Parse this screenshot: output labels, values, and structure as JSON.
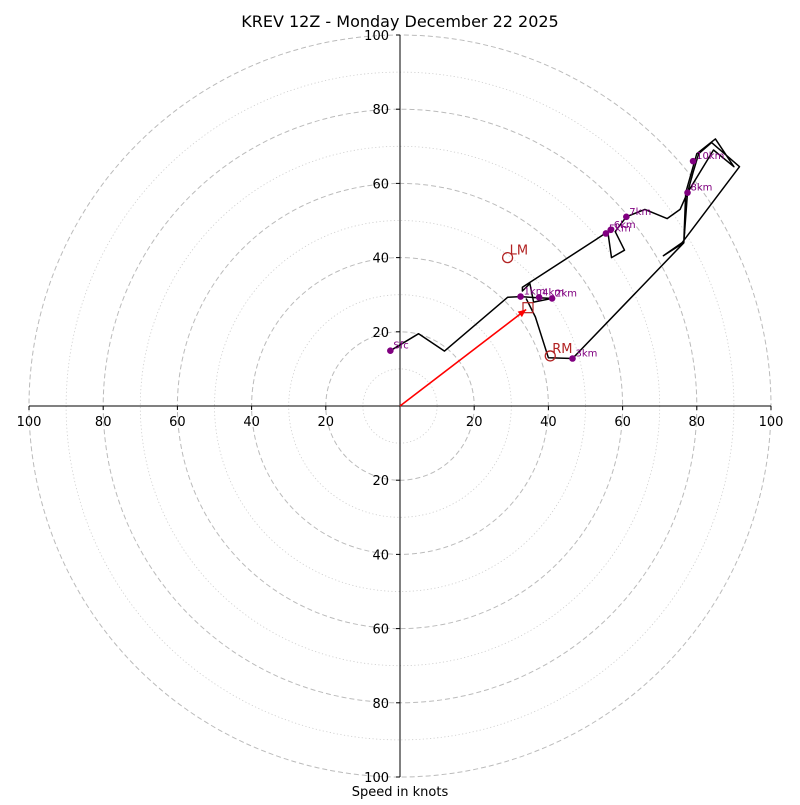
{
  "chart_data": {
    "type": "hodograph",
    "title": "KREV 12Z - Monday December 22 2025",
    "xlabel": "Speed in knots",
    "ring_max": 100,
    "ring_step_major": 20,
    "ring_step_minor": 10,
    "axis_tick_labels": [
      "100",
      "80",
      "60",
      "40",
      "20",
      "20",
      "40",
      "60",
      "80",
      "100"
    ],
    "tick_values": [
      20,
      40,
      60,
      80,
      100
    ],
    "colors": {
      "trace": "#000000",
      "height_points": "#800080",
      "motion": "#b22222",
      "mean_wind_arrow": "#ff0000",
      "rings": "#bbbbbb",
      "axes": "#000000"
    },
    "hodograph_trace": [
      [
        -2.6,
        14.9
      ],
      [
        5,
        19.5
      ],
      [
        12,
        14.8
      ],
      [
        29,
        29.3
      ],
      [
        32.5,
        29.5
      ],
      [
        37,
        29.2
      ],
      [
        41,
        29
      ],
      [
        36,
        28
      ],
      [
        35,
        33
      ],
      [
        33,
        31
      ],
      [
        33,
        32
      ],
      [
        53,
        45
      ],
      [
        56,
        47
      ],
      [
        57,
        40
      ],
      [
        60.5,
        42
      ],
      [
        58,
        47
      ],
      [
        61,
        51
      ],
      [
        66,
        53
      ],
      [
        72,
        50.5
      ],
      [
        75.5,
        53
      ],
      [
        77.5,
        57.5
      ],
      [
        79,
        63
      ],
      [
        80.5,
        68
      ],
      [
        84,
        71
      ],
      [
        91.5,
        64.5
      ],
      [
        76,
        44
      ],
      [
        71,
        40.5
      ],
      [
        76.5,
        44
      ],
      [
        77,
        57.5
      ],
      [
        80,
        68
      ],
      [
        85,
        72
      ],
      [
        90,
        64.5
      ],
      [
        84.5,
        69
      ],
      [
        77.5,
        57.5
      ],
      [
        76.5,
        44
      ],
      [
        46.5,
        12.8
      ],
      [
        40,
        13
      ],
      [
        36.5,
        24
      ],
      [
        34,
        29
      ]
    ],
    "height_points": [
      {
        "label": "Sfc",
        "u": -2.6,
        "v": 14.9
      },
      {
        "label": "1km",
        "u": 32.5,
        "v": 29.5
      },
      {
        "label": "4km",
        "u": 37.5,
        "v": 29.3
      },
      {
        "label": "2km",
        "u": 41,
        "v": 29
      },
      {
        "label": "3km",
        "u": 46.5,
        "v": 12.8
      },
      {
        "label": "5km",
        "u": 55.5,
        "v": 46.5
      },
      {
        "label": "6km",
        "u": 56.8,
        "v": 47.5
      },
      {
        "label": "7km",
        "u": 61,
        "v": 51
      },
      {
        "label": "8km",
        "u": 77.5,
        "v": 57.5
      },
      {
        "label": "10km",
        "u": 79,
        "v": 66
      }
    ],
    "storm_motions": [
      {
        "label": "LM",
        "u": 29,
        "v": 40
      },
      {
        "label": "RM",
        "u": 40.5,
        "v": 13.5
      }
    ],
    "mean_wind": {
      "u": 34.5,
      "v": 26.5
    },
    "mean_wind_arrow_tip": {
      "u": 34,
      "v": 26
    }
  }
}
